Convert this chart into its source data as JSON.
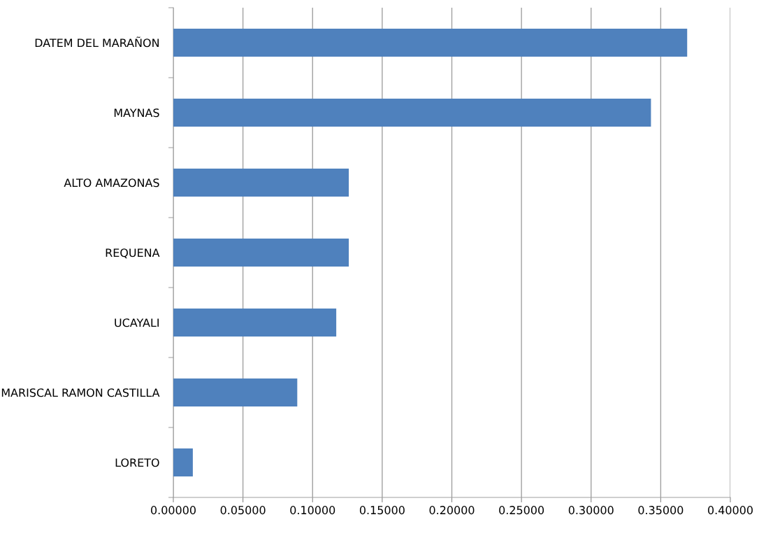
{
  "chart_data": {
    "type": "bar",
    "orientation": "horizontal",
    "categories": [
      "DATEM DEL MARAÑON",
      "MAYNAS",
      "ALTO AMAZONAS",
      "REQUENA",
      "UCAYALI",
      "MARISCAL RAMON CASTILLA",
      "LORETO"
    ],
    "values": [
      0.369,
      0.343,
      0.126,
      0.126,
      0.117,
      0.089,
      0.014
    ],
    "color": "#4f81bd",
    "xlim": [
      0,
      0.4
    ],
    "xticks": [
      {
        "value": 0,
        "label": "0.00000"
      },
      {
        "value": 0.05,
        "label": "0.05000"
      },
      {
        "value": 0.1,
        "label": "0.10000"
      },
      {
        "value": 0.15,
        "label": "0.15000"
      },
      {
        "value": 0.2,
        "label": "0.20000"
      },
      {
        "value": 0.25,
        "label": "0.25000"
      },
      {
        "value": 0.3,
        "label": "0.30000"
      },
      {
        "value": 0.35,
        "label": "0.35000"
      },
      {
        "value": 0.4,
        "label": "0.40000"
      }
    ],
    "grid": "x"
  }
}
